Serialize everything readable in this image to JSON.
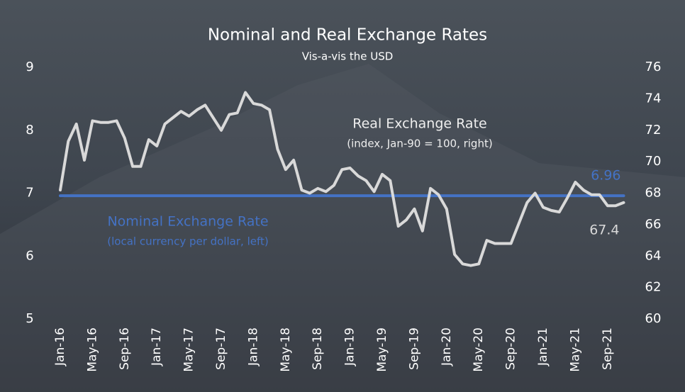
{
  "chart_data": {
    "type": "line",
    "title": "Nominal and Real Exchange Rates",
    "subtitle": "Vis-a-vis the USD",
    "categories": [
      "Jan-16",
      null,
      null,
      null,
      "May-16",
      null,
      null,
      null,
      "Sep-16",
      null,
      null,
      null,
      "Jan-17",
      null,
      null,
      null,
      "May-17",
      null,
      null,
      null,
      "Sep-17",
      null,
      null,
      null,
      "Jan-18",
      null,
      null,
      null,
      "May-18",
      null,
      null,
      null,
      "Sep-18",
      null,
      null,
      null,
      "Jan-19",
      null,
      null,
      null,
      "May-19",
      null,
      null,
      null,
      "Sep-19",
      null,
      null,
      null,
      "Jan-20",
      null,
      null,
      null,
      "May-20",
      null,
      null,
      null,
      "Sep-20",
      null,
      null,
      null,
      "Jan-21",
      null,
      null,
      null,
      "May-21",
      null,
      null,
      null,
      "Sep-21",
      null,
      null
    ],
    "series": [
      {
        "name": "Nominal Exchange Rate",
        "note": "(local currency per dollar, left)",
        "color": "#4472c4",
        "axis": "y",
        "values": [
          6.96,
          6.96,
          6.96,
          6.96,
          6.96,
          6.96,
          6.96,
          6.96,
          6.96,
          6.96,
          6.96,
          6.96,
          6.96,
          6.96,
          6.96,
          6.96,
          6.96,
          6.96,
          6.96,
          6.96,
          6.96,
          6.96,
          6.96,
          6.96,
          6.96,
          6.96,
          6.96,
          6.96,
          6.96,
          6.96,
          6.96,
          6.96,
          6.96,
          6.96,
          6.96,
          6.96,
          6.96,
          6.96,
          6.96,
          6.96,
          6.96,
          6.96,
          6.96,
          6.96,
          6.96,
          6.96,
          6.96,
          6.96,
          6.96,
          6.96,
          6.96,
          6.96,
          6.96,
          6.96,
          6.96,
          6.96,
          6.96,
          6.96,
          6.96,
          6.96,
          6.96,
          6.96,
          6.96,
          6.96,
          6.96,
          6.96,
          6.96,
          6.96,
          6.96,
          6.96,
          6.96
        ]
      },
      {
        "name": "Real Exchange Rate",
        "note": "(index, Jan-90 = 100, right)",
        "color": "#d9d9d9",
        "axis": "y2",
        "values": [
          68.2,
          71.3,
          72.4,
          70.1,
          72.6,
          72.5,
          72.5,
          72.6,
          71.5,
          69.7,
          69.7,
          71.4,
          71.0,
          72.4,
          72.8,
          73.2,
          72.9,
          73.3,
          73.6,
          72.8,
          72.0,
          73.0,
          73.1,
          74.4,
          73.7,
          73.6,
          73.3,
          70.8,
          69.5,
          70.1,
          68.2,
          68.0,
          68.3,
          68.1,
          68.5,
          69.5,
          69.6,
          69.1,
          68.8,
          68.1,
          69.2,
          68.8,
          65.9,
          66.3,
          67.0,
          65.6,
          68.3,
          67.9,
          67.0,
          64.1,
          63.5,
          63.4,
          63.5,
          65.0,
          64.8,
          64.8,
          64.8,
          66.1,
          67.4,
          68.0,
          67.1,
          66.9,
          66.8,
          67.7,
          68.7,
          68.2,
          67.9,
          67.9,
          67.2,
          67.2,
          67.4
        ]
      }
    ],
    "ylim": [
      5,
      9
    ],
    "yticks": [
      5,
      6,
      7,
      8,
      9
    ],
    "y2lim": [
      60,
      76
    ],
    "y2ticks": [
      60,
      62,
      64,
      66,
      68,
      70,
      72,
      74,
      76
    ]
  }
}
